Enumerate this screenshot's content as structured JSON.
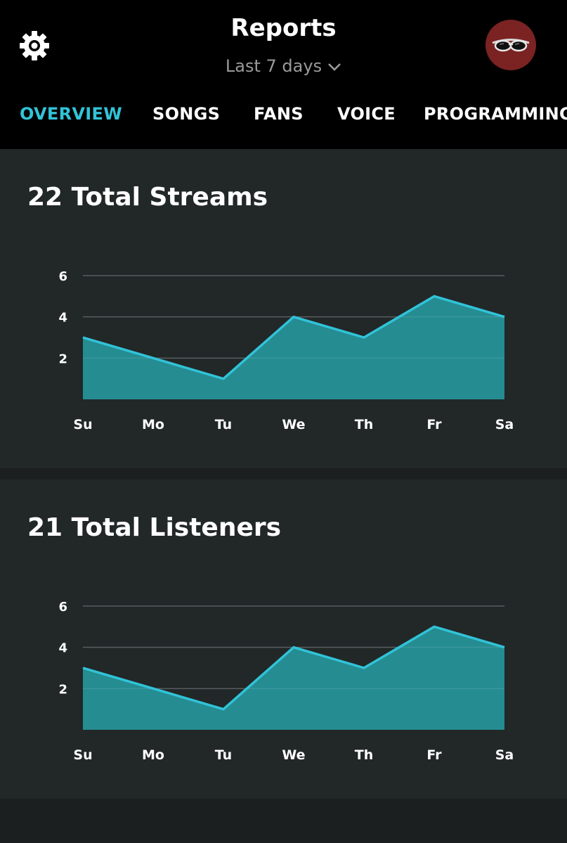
{
  "header": {
    "title": "Reports",
    "date_range": "Last 7 days",
    "settings_icon": "gear-icon",
    "avatar_icon": "sunglasses-avatar"
  },
  "tabs": [
    {
      "label": "OVERVIEW",
      "active": true
    },
    {
      "label": "SONGS",
      "active": false
    },
    {
      "label": "FANS",
      "active": false
    },
    {
      "label": "VOICE",
      "active": false
    },
    {
      "label": "PROGRAMMING",
      "active": false
    }
  ],
  "colors": {
    "accent": "#31c3d8",
    "area_fill": "#26959a",
    "card_bg": "#222728",
    "page_bg": "#1b1f20"
  },
  "cards": [
    {
      "title": "22 Total Streams"
    },
    {
      "title": "21 Total Listeners"
    }
  ],
  "chart_data": [
    {
      "type": "area",
      "title": "22 Total Streams",
      "categories": [
        "Su",
        "Mo",
        "Tu",
        "We",
        "Th",
        "Fr",
        "Sa"
      ],
      "values": [
        3,
        2,
        1,
        4,
        3,
        5,
        4
      ],
      "ylim": [
        0,
        6
      ],
      "yticks": [
        2,
        4,
        6
      ],
      "grid": true
    },
    {
      "type": "area",
      "title": "21 Total Listeners",
      "categories": [
        "Su",
        "Mo",
        "Tu",
        "We",
        "Th",
        "Fr",
        "Sa"
      ],
      "values": [
        3,
        2,
        1,
        4,
        3,
        5,
        4
      ],
      "ylim": [
        0,
        6
      ],
      "yticks": [
        2,
        4,
        6
      ],
      "grid": true
    }
  ]
}
